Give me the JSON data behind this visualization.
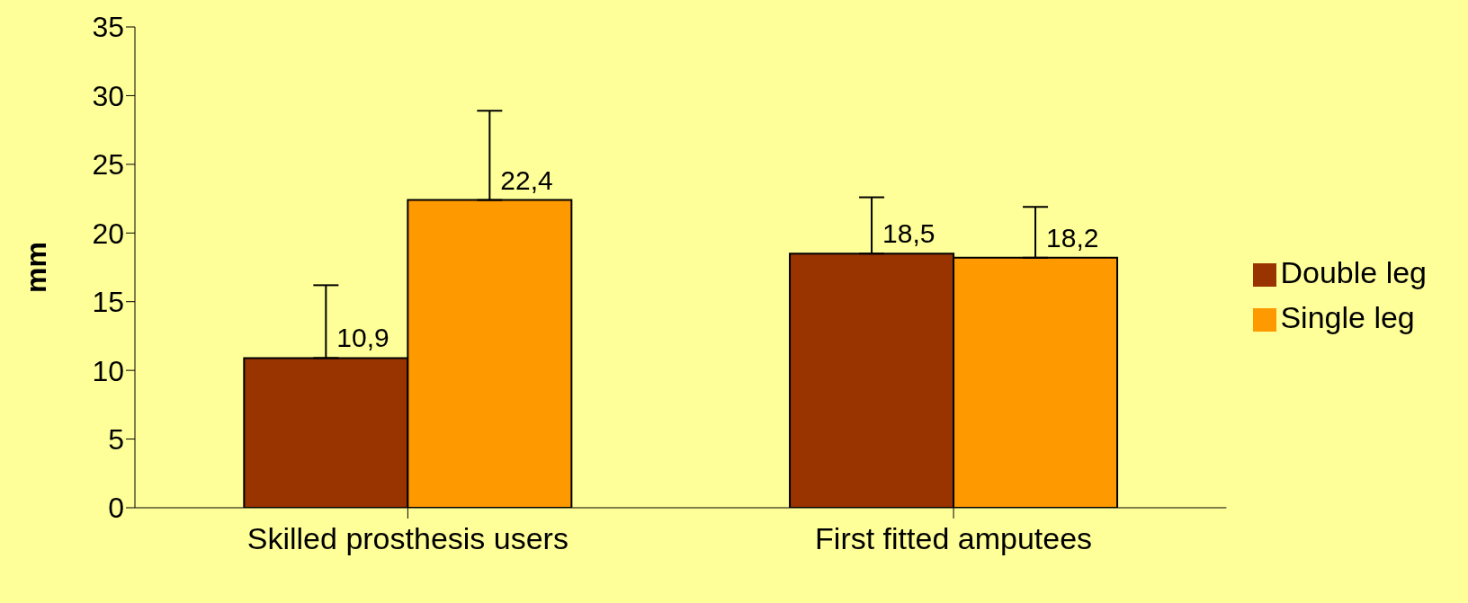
{
  "chart_data": {
    "type": "bar",
    "ylabel": "mm",
    "categories": [
      "Skilled prosthesis users",
      "First fitted amputees"
    ],
    "series": [
      {
        "name": "Double leg",
        "color": "#993300",
        "values": [
          10.9,
          18.5
        ],
        "errors": [
          [
            10.9,
            16.2
          ],
          [
            18.5,
            22.6
          ]
        ],
        "value_labels": [
          "10,9",
          "18,5"
        ]
      },
      {
        "name": "Single leg",
        "color": "#ff9900",
        "values": [
          22.4,
          18.2
        ],
        "errors": [
          [
            22.4,
            28.9
          ],
          [
            18.2,
            21.9
          ]
        ],
        "value_labels": [
          "22,4",
          "18,2"
        ]
      }
    ],
    "ylim": [
      0,
      35
    ],
    "yticks": [
      0,
      5,
      10,
      15,
      20,
      25,
      30,
      35
    ],
    "grid": false,
    "legend": "right"
  }
}
